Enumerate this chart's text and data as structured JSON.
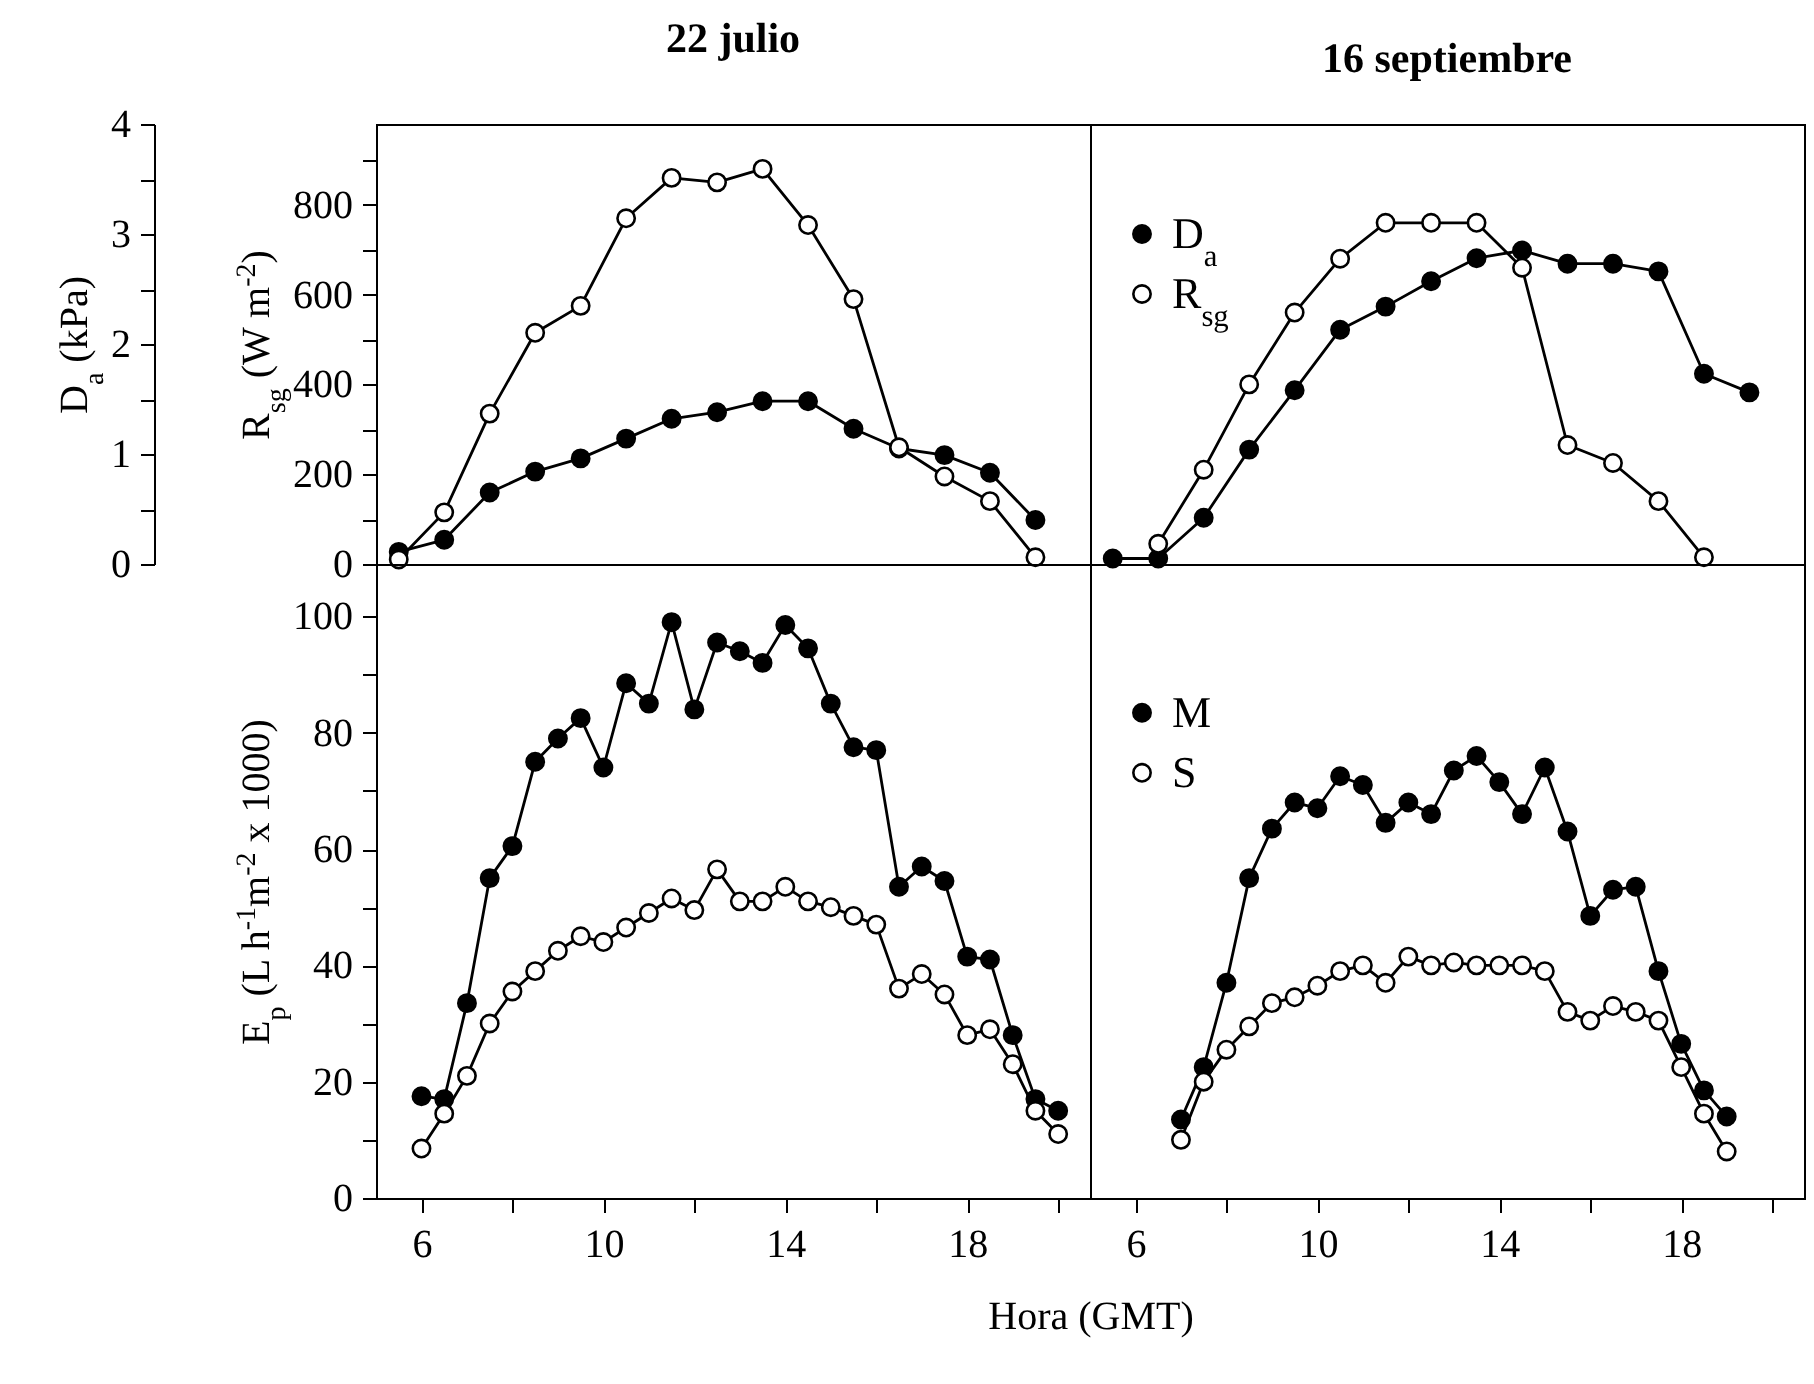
{
  "chart_data": [
    {
      "type": "line",
      "title": "22 julio",
      "ylabel": "D$_{a}$ (kPa)",
      "y2label": "R$_{sg}$ (W m$^{-2}$)",
      "marker": "circle",
      "line_style": "solid",
      "tick_labels": "y",
      "xlim": [
        5,
        20.7
      ],
      "ylim": [
        0,
        4
      ],
      "yticks": [
        0,
        {
          "value": 0.5,
          "label": null
        },
        1,
        {
          "value": 1.5,
          "label": null
        },
        2,
        {
          "value": 2.5,
          "label": null
        },
        3,
        {
          "value": 3.5,
          "label": null
        },
        4
      ],
      "y2lim": [
        0,
        980
      ],
      "y2ticks": [
        0,
        {
          "value": 100,
          "label": null
        },
        200,
        {
          "value": 300,
          "label": null
        },
        400,
        {
          "value": 500,
          "label": null
        },
        600,
        {
          "value": 700,
          "label": null
        },
        800,
        {
          "value": 900,
          "label": null
        }
      ],
      "x": [
        5.5,
        6.5,
        7.5,
        8.5,
        9.5,
        10.5,
        11.5,
        12.5,
        13.5,
        14.5,
        15.5,
        16.5,
        17.5,
        18.5,
        19.5
      ],
      "series": [
        {
          "color": "#000000",
          "values": [
            0.11,
            0.22,
            0.65,
            0.84,
            0.96,
            1.14,
            1.32,
            1.38,
            1.48,
            1.48,
            1.23,
            1.05,
            0.99,
            0.83,
            0.4
          ]
        },
        {
          "color": "#ffffff",
          "axis": "y2",
          "values": [
            10,
            115,
            335,
            515,
            575,
            770,
            860,
            850,
            880,
            755,
            590,
            260,
            195,
            140,
            15
          ]
        }
      ]
    },
    {
      "type": "line",
      "title": "16 septiembre",
      "marker": "circle",
      "line_style": "solid",
      "tick_labels": false,
      "legend": "top left",
      "xlim": [
        5,
        20.7
      ],
      "ylim": [
        0,
        4
      ],
      "y2lim": [
        0,
        980
      ],
      "series": [
        {
          "name": "D$_{a}$",
          "color": "#000000",
          "x": [
            5.5,
            6.5,
            7.5,
            8.5,
            9.5,
            10.5,
            11.5,
            12.5,
            13.5,
            14.5,
            15.5,
            16.5,
            17.5,
            18.5,
            19.5
          ],
          "values": [
            0.05,
            0.05,
            0.42,
            1.04,
            1.58,
            2.13,
            2.34,
            2.57,
            2.78,
            2.85,
            2.73,
            2.73,
            2.66,
            1.73,
            1.56
          ]
        },
        {
          "name": "R$_{sg}$",
          "color": "#ffffff",
          "axis": "y2",
          "x": [
            6.5,
            7.5,
            8.5,
            9.5,
            10.5,
            11.5,
            12.5,
            13.5,
            14.5,
            15.5,
            16.5,
            17.5,
            18.5
          ],
          "values": [
            45,
            210,
            400,
            560,
            680,
            760,
            760,
            760,
            660,
            265,
            225,
            140,
            15
          ]
        }
      ]
    },
    {
      "type": "line",
      "ylabel": "E$_{p}$ (L h$^{-1}$m$^{-2}$ x 1000)",
      "xlabel": "Hora (GMT)",
      "marker": "circle",
      "line_style": "solid",
      "xlim": [
        5,
        20.7
      ],
      "xticks": [
        6,
        {
          "value": 8,
          "label": null
        },
        10,
        {
          "value": 12,
          "label": null
        },
        14,
        {
          "value": 16,
          "label": null
        },
        18,
        {
          "value": 20,
          "label": null
        }
      ],
      "ylim": [
        0,
        109
      ],
      "yticks": [
        0,
        {
          "value": 10,
          "label": null
        },
        20,
        {
          "value": 30,
          "label": null
        },
        40,
        {
          "value": 50,
          "label": null
        },
        60,
        {
          "value": 70,
          "label": null
        },
        80,
        {
          "value": 90,
          "label": null
        },
        100
      ],
      "x": [
        6,
        6.5,
        7,
        7.5,
        8,
        8.5,
        9,
        9.5,
        10,
        10.5,
        11,
        11.5,
        12,
        12.5,
        13,
        13.5,
        14,
        14.5,
        15,
        15.5,
        16,
        16.5,
        17,
        17.5,
        18,
        18.5,
        19,
        19.5,
        20
      ],
      "series": [
        {
          "color": "#000000",
          "values": [
            17.5,
            17,
            33.5,
            55,
            60.5,
            75,
            79,
            82.5,
            74,
            88.5,
            85,
            99,
            84,
            95.5,
            94,
            92,
            98.5,
            94.5,
            85,
            77.5,
            77,
            53.5,
            57,
            54.5,
            41.5,
            41,
            28,
            17,
            15
          ]
        },
        {
          "color": "#ffffff",
          "values": [
            8.5,
            14.5,
            21,
            30,
            35.5,
            39,
            42.5,
            45,
            44,
            46.5,
            49,
            51.5,
            49.5,
            56.5,
            51,
            51,
            53.5,
            51,
            50,
            48.5,
            47,
            36,
            38.5,
            35,
            28,
            29,
            23,
            15,
            11
          ]
        }
      ]
    },
    {
      "type": "line",
      "marker": "circle",
      "line_style": "solid",
      "tick_labels": "x",
      "legend": "top left",
      "xlim": [
        5,
        20.7
      ],
      "xticks": [
        6,
        {
          "value": 8,
          "label": null
        },
        10,
        {
          "value": 12,
          "label": null
        },
        14,
        {
          "value": 16,
          "label": null
        },
        18,
        {
          "value": 20,
          "label": null
        }
      ],
      "ylim": [
        0,
        109
      ],
      "x": [
        7,
        7.5,
        8,
        8.5,
        9,
        9.5,
        10,
        10.5,
        11,
        11.5,
        12,
        12.5,
        13,
        13.5,
        14,
        14.5,
        15,
        15.5,
        16,
        16.5,
        17,
        17.5,
        18,
        18.5,
        19
      ],
      "series": [
        {
          "name": "M",
          "color": "#000000",
          "values": [
            13.5,
            22.5,
            37,
            55,
            63.5,
            68,
            67,
            72.5,
            71,
            64.5,
            68,
            66,
            73.5,
            76,
            71.5,
            66,
            74,
            63,
            48.5,
            53,
            53.5,
            39,
            26.5,
            18.5,
            14
          ]
        },
        {
          "name": "S",
          "color": "#ffffff",
          "values": [
            10,
            20,
            25.5,
            29.5,
            33.5,
            34.5,
            36.5,
            39,
            40,
            37,
            41.5,
            40,
            40.5,
            40,
            40,
            40,
            39,
            32,
            30.5,
            33,
            32,
            30.5,
            22.5,
            14.5,
            8
          ]
        }
      ]
    }
  ]
}
